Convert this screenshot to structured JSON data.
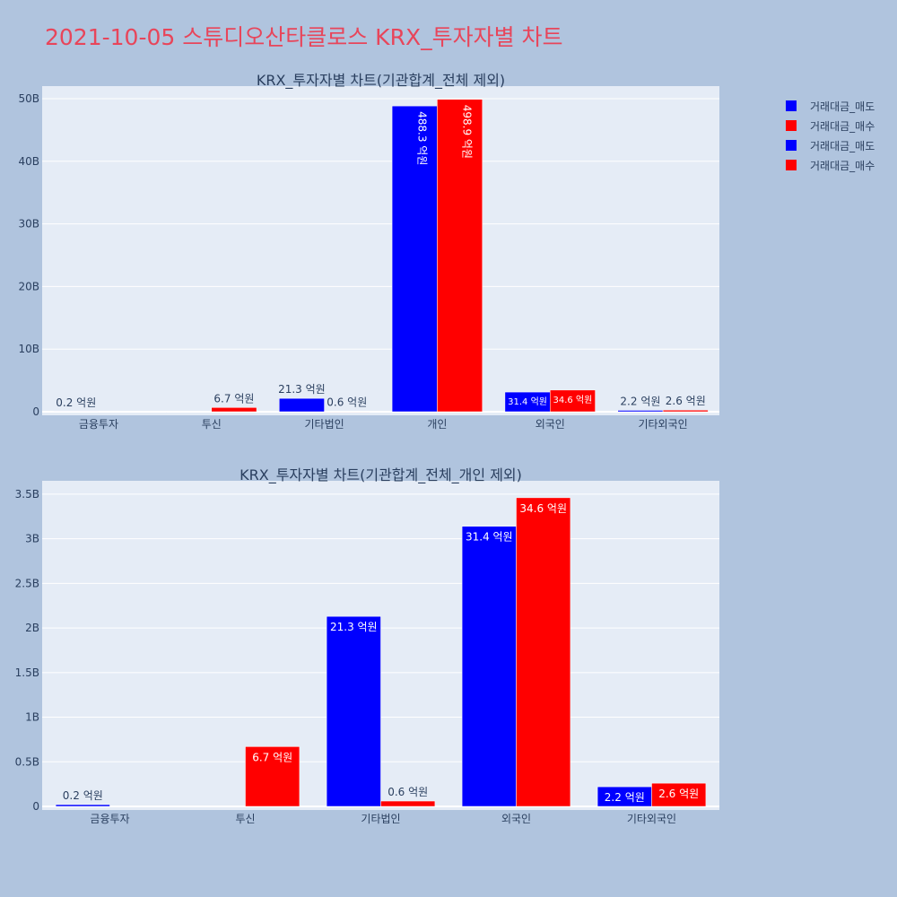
{
  "title": "2021-10-05 스튜디오산타클로스 KRX_투자자별 차트",
  "colors": {
    "sell": "#0000ff",
    "buy": "#ff0000",
    "background": "#b0c4de",
    "plot_bg": "#e5ecf6",
    "title": "#e8455a"
  },
  "legend": [
    {
      "label": "거래대금_매도",
      "color": "#0000ff"
    },
    {
      "label": "거래대금_매수",
      "color": "#ff0000"
    },
    {
      "label": "거래대금_매도",
      "color": "#0000ff"
    },
    {
      "label": "거래대금_매수",
      "color": "#ff0000"
    }
  ],
  "chart_data": [
    {
      "type": "bar",
      "title": "KRX_투자자별 차트(기관합계_전체 제외)",
      "categories": [
        "금융투자",
        "투신",
        "기타법인",
        "개인",
        "외국인",
        "기타외국인"
      ],
      "series": [
        {
          "name": "거래대금_매도",
          "values": [
            20000000,
            0,
            2130000000,
            48830000000,
            3140000000,
            220000000
          ],
          "labels": [
            "0.2 억원",
            "",
            "21.3 억원",
            "488.3 억원",
            "31.4 억원",
            "2.2 억원"
          ]
        },
        {
          "name": "거래대금_매수",
          "values": [
            0,
            670000000,
            60000000,
            49890000000,
            3460000000,
            260000000
          ],
          "labels": [
            "",
            "6.7 억원",
            "0.6 억원",
            "498.9 억원",
            "34.6 억원",
            "2.6 억원"
          ]
        }
      ],
      "ylim": [
        0,
        52000000000
      ],
      "yticks": [
        0,
        10000000000,
        20000000000,
        30000000000,
        40000000000,
        50000000000
      ],
      "ytick_labels": [
        "0",
        "10B",
        "20B",
        "30B",
        "40B",
        "50B"
      ],
      "label_positions": [
        [
          "outside",
          "none",
          "outside",
          "inside",
          "inside",
          "outside"
        ],
        [
          "none",
          "outside",
          "outside",
          "inside",
          "inside",
          "outside"
        ]
      ],
      "grid": true,
      "legend": "right"
    },
    {
      "type": "bar",
      "title": "KRX_투자자별 차트(기관합계_전체_개인 제외)",
      "categories": [
        "금융투자",
        "투신",
        "기타법인",
        "외국인",
        "기타외국인"
      ],
      "series": [
        {
          "name": "거래대금_매도",
          "values": [
            20000000,
            0,
            2130000000,
            3140000000,
            220000000
          ],
          "labels": [
            "0.2 억원",
            "",
            "21.3 억원",
            "31.4 억원",
            "2.2 억원"
          ]
        },
        {
          "name": "거래대금_매수",
          "values": [
            0,
            670000000,
            60000000,
            3460000000,
            260000000
          ],
          "labels": [
            "",
            "6.7 억원",
            "0.6 억원",
            "34.6 억원",
            "2.6 억원"
          ]
        }
      ],
      "ylim": [
        0,
        3650000000
      ],
      "yticks": [
        0,
        500000000,
        1000000000,
        1500000000,
        2000000000,
        2500000000,
        3000000000,
        3500000000
      ],
      "ytick_labels": [
        "0",
        "0.5B",
        "1B",
        "1.5B",
        "2B",
        "2.5B",
        "3B",
        "3.5B"
      ],
      "label_positions": [
        [
          "outside",
          "none",
          "inside",
          "inside",
          "inside"
        ],
        [
          "none",
          "inside",
          "outside",
          "inside",
          "inside"
        ]
      ],
      "grid": true,
      "legend": "right"
    }
  ]
}
